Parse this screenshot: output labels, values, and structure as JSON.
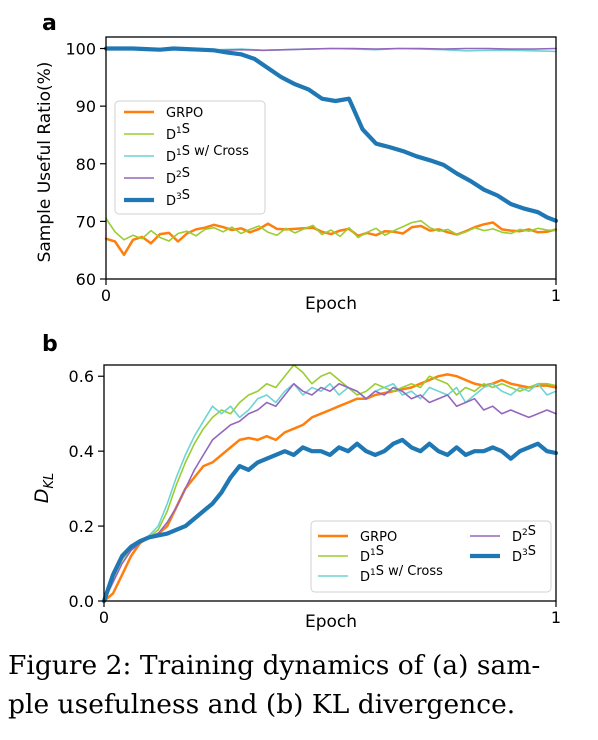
{
  "panel_a": {
    "letter": "a",
    "chart_data": {
      "type": "line",
      "xlabel": "Epoch",
      "ylabel": "Sample Useful Ratio(%)",
      "xlim": [
        0,
        1
      ],
      "ylim": [
        60,
        102
      ],
      "xticks": [
        "0",
        "1"
      ],
      "yticks": [
        60,
        70,
        80,
        90,
        100
      ],
      "legend_position": "center-left",
      "series": [
        {
          "name": "GRPO",
          "color": "#ff7f0e",
          "width": 2.5,
          "x": [
            0,
            0.02,
            0.04,
            0.06,
            0.08,
            0.1,
            0.12,
            0.14,
            0.16,
            0.18,
            0.2,
            0.22,
            0.24,
            0.26,
            0.28,
            0.3,
            0.32,
            0.34,
            0.36,
            0.38,
            0.4,
            0.42,
            0.44,
            0.46,
            0.48,
            0.5,
            0.52,
            0.54,
            0.56,
            0.58,
            0.6,
            0.62,
            0.64,
            0.66,
            0.68,
            0.7,
            0.72,
            0.74,
            0.76,
            0.78,
            0.8,
            0.82,
            0.84,
            0.86,
            0.88,
            0.9,
            0.92,
            0.94,
            0.96,
            0.98,
            1
          ],
          "y": [
            67,
            66.5,
            64.2,
            66.8,
            67.3,
            66.2,
            67.8,
            68.0,
            66.5,
            67.9,
            68.6,
            68.9,
            69.4,
            69.0,
            68.5,
            68.8,
            68.1,
            68.7,
            69.6,
            68.7,
            68.6,
            68.7,
            68.8,
            68.9,
            68.2,
            67.8,
            68.4,
            68.7,
            67.5,
            68.0,
            67.6,
            68.3,
            68.2,
            67.9,
            69.0,
            69.2,
            68.4,
            68.6,
            68.1,
            67.7,
            68.3,
            69.0,
            69.5,
            69.8,
            68.6,
            68.4,
            68.3,
            68.6,
            68.1,
            68.2,
            68.6
          ]
        },
        {
          "name": "D¹S",
          "color": "#9acd32",
          "width": 1.6,
          "x": [
            0,
            0.02,
            0.04,
            0.06,
            0.08,
            0.1,
            0.12,
            0.14,
            0.16,
            0.18,
            0.2,
            0.22,
            0.24,
            0.26,
            0.28,
            0.3,
            0.32,
            0.34,
            0.36,
            0.38,
            0.4,
            0.42,
            0.44,
            0.46,
            0.48,
            0.5,
            0.52,
            0.54,
            0.56,
            0.58,
            0.6,
            0.62,
            0.64,
            0.66,
            0.68,
            0.7,
            0.72,
            0.74,
            0.76,
            0.78,
            0.8,
            0.82,
            0.84,
            0.86,
            0.88,
            0.9,
            0.92,
            0.94,
            0.96,
            0.98,
            1
          ],
          "y": [
            70.5,
            68.2,
            66.8,
            67.6,
            67.0,
            68.4,
            67.2,
            66.6,
            67.9,
            68.3,
            67.5,
            68.6,
            68.9,
            68.2,
            69.0,
            67.9,
            68.6,
            69.2,
            68.1,
            67.6,
            68.8,
            68.0,
            68.7,
            69.3,
            67.7,
            68.5,
            67.4,
            68.9,
            67.2,
            68.1,
            68.8,
            67.6,
            68.4,
            69.1,
            69.8,
            70.1,
            68.9,
            68.3,
            68.6,
            67.7,
            68.2,
            68.9,
            68.4,
            68.7,
            68.1,
            67.9,
            68.6,
            68.3,
            68.8,
            68.5,
            68.4
          ]
        },
        {
          "name": "D¹S w/ Cross",
          "color": "#6fd4d4",
          "width": 1.6,
          "x": [
            0,
            0.05,
            0.1,
            0.15,
            0.2,
            0.25,
            0.3,
            0.35,
            0.4,
            0.45,
            0.5,
            0.55,
            0.6,
            0.65,
            0.7,
            0.75,
            0.8,
            0.85,
            0.9,
            0.95,
            1
          ],
          "y": [
            99.8,
            99.9,
            100,
            99.9,
            99.9,
            99.8,
            99.9,
            99.7,
            99.8,
            99.9,
            100,
            99.9,
            99.8,
            100,
            99.9,
            99.8,
            99.6,
            99.7,
            99.7,
            99.6,
            99.5
          ]
        },
        {
          "name": "D²S",
          "color": "#9467bd",
          "width": 1.6,
          "x": [
            0,
            0.05,
            0.1,
            0.15,
            0.2,
            0.25,
            0.3,
            0.35,
            0.4,
            0.45,
            0.5,
            0.55,
            0.6,
            0.65,
            0.7,
            0.75,
            0.8,
            0.85,
            0.9,
            0.95,
            1
          ],
          "y": [
            100,
            99.9,
            100,
            99.9,
            99.8,
            99.7,
            99.8,
            99.7,
            99.8,
            99.9,
            100,
            100,
            99.9,
            100,
            100,
            99.9,
            100,
            100,
            99.9,
            99.9,
            100
          ]
        },
        {
          "name": "D³S",
          "color": "#1f77b4",
          "width": 4.2,
          "x": [
            0,
            0.03,
            0.06,
            0.09,
            0.12,
            0.15,
            0.18,
            0.21,
            0.24,
            0.27,
            0.3,
            0.33,
            0.36,
            0.39,
            0.42,
            0.45,
            0.48,
            0.51,
            0.54,
            0.57,
            0.6,
            0.63,
            0.66,
            0.69,
            0.72,
            0.75,
            0.78,
            0.81,
            0.84,
            0.87,
            0.9,
            0.93,
            0.96,
            0.98,
            1
          ],
          "y": [
            100,
            100,
            100,
            99.9,
            99.8,
            100,
            99.9,
            99.8,
            99.7,
            99.3,
            99,
            98.2,
            96.6,
            95,
            93.8,
            92.9,
            91.3,
            90.9,
            91.3,
            86,
            83.5,
            82.9,
            82.2,
            81.3,
            80.6,
            79.8,
            78.3,
            77,
            75.5,
            74.5,
            73,
            72.2,
            71.6,
            70.7,
            70.1
          ]
        }
      ]
    }
  },
  "panel_b": {
    "letter": "b",
    "chart_data": {
      "type": "line",
      "xlabel": "Epoch",
      "ylabel": "D_KL",
      "ylabel_main": "D",
      "ylabel_sub": "KL",
      "xlim": [
        0,
        1
      ],
      "ylim": [
        0,
        0.63
      ],
      "xticks": [
        "0",
        "1"
      ],
      "yticks": [
        "0.0",
        "0.2",
        "0.4",
        "0.6"
      ],
      "legend_position": "lower-right",
      "series": [
        {
          "name": "GRPO",
          "color": "#ff7f0e",
          "width": 2.5,
          "x": [
            0,
            0.02,
            0.04,
            0.06,
            0.08,
            0.1,
            0.12,
            0.14,
            0.16,
            0.18,
            0.2,
            0.22,
            0.24,
            0.26,
            0.28,
            0.3,
            0.32,
            0.34,
            0.36,
            0.38,
            0.4,
            0.42,
            0.44,
            0.46,
            0.48,
            0.5,
            0.52,
            0.54,
            0.56,
            0.58,
            0.6,
            0.62,
            0.64,
            0.66,
            0.68,
            0.7,
            0.72,
            0.74,
            0.76,
            0.78,
            0.8,
            0.82,
            0.84,
            0.86,
            0.88,
            0.9,
            0.92,
            0.94,
            0.96,
            0.98,
            1
          ],
          "y": [
            0,
            0.02,
            0.07,
            0.12,
            0.155,
            0.17,
            0.18,
            0.2,
            0.25,
            0.3,
            0.33,
            0.36,
            0.37,
            0.39,
            0.41,
            0.43,
            0.435,
            0.43,
            0.44,
            0.43,
            0.45,
            0.46,
            0.47,
            0.49,
            0.5,
            0.51,
            0.52,
            0.53,
            0.54,
            0.54,
            0.55,
            0.555,
            0.56,
            0.565,
            0.57,
            0.58,
            0.59,
            0.6,
            0.605,
            0.6,
            0.59,
            0.58,
            0.575,
            0.58,
            0.59,
            0.58,
            0.575,
            0.57,
            0.575,
            0.575,
            0.57
          ]
        },
        {
          "name": "D¹S",
          "color": "#9acd32",
          "width": 1.6,
          "x": [
            0,
            0.02,
            0.04,
            0.06,
            0.08,
            0.1,
            0.12,
            0.14,
            0.16,
            0.18,
            0.2,
            0.22,
            0.24,
            0.26,
            0.28,
            0.3,
            0.32,
            0.34,
            0.36,
            0.38,
            0.4,
            0.42,
            0.44,
            0.46,
            0.48,
            0.5,
            0.52,
            0.54,
            0.56,
            0.58,
            0.6,
            0.62,
            0.64,
            0.66,
            0.68,
            0.7,
            0.72,
            0.74,
            0.76,
            0.78,
            0.8,
            0.82,
            0.84,
            0.86,
            0.88,
            0.9,
            0.92,
            0.94,
            0.96,
            0.98,
            1
          ],
          "y": [
            0,
            0.06,
            0.11,
            0.14,
            0.16,
            0.17,
            0.19,
            0.24,
            0.31,
            0.37,
            0.42,
            0.46,
            0.49,
            0.51,
            0.5,
            0.53,
            0.55,
            0.56,
            0.58,
            0.57,
            0.6,
            0.63,
            0.61,
            0.58,
            0.6,
            0.61,
            0.59,
            0.57,
            0.55,
            0.56,
            0.58,
            0.57,
            0.56,
            0.57,
            0.58,
            0.57,
            0.6,
            0.59,
            0.58,
            0.55,
            0.57,
            0.56,
            0.58,
            0.57,
            0.58,
            0.57,
            0.56,
            0.57,
            0.58,
            0.58,
            0.575
          ]
        },
        {
          "name": "D¹S w/ Cross",
          "color": "#6fd4d4",
          "width": 1.6,
          "x": [
            0,
            0.02,
            0.04,
            0.06,
            0.08,
            0.1,
            0.12,
            0.14,
            0.16,
            0.18,
            0.2,
            0.22,
            0.24,
            0.26,
            0.28,
            0.3,
            0.32,
            0.34,
            0.36,
            0.38,
            0.4,
            0.42,
            0.44,
            0.46,
            0.48,
            0.5,
            0.52,
            0.54,
            0.56,
            0.58,
            0.6,
            0.62,
            0.64,
            0.66,
            0.68,
            0.7,
            0.72,
            0.74,
            0.76,
            0.78,
            0.8,
            0.82,
            0.84,
            0.86,
            0.88,
            0.9,
            0.92,
            0.94,
            0.96,
            0.98,
            1
          ],
          "y": [
            0,
            0.07,
            0.12,
            0.145,
            0.16,
            0.175,
            0.2,
            0.26,
            0.33,
            0.39,
            0.44,
            0.48,
            0.52,
            0.5,
            0.52,
            0.49,
            0.51,
            0.54,
            0.55,
            0.53,
            0.56,
            0.58,
            0.55,
            0.57,
            0.56,
            0.58,
            0.55,
            0.57,
            0.56,
            0.54,
            0.56,
            0.57,
            0.58,
            0.55,
            0.56,
            0.54,
            0.57,
            0.56,
            0.55,
            0.57,
            0.53,
            0.55,
            0.57,
            0.58,
            0.56,
            0.55,
            0.57,
            0.56,
            0.58,
            0.55,
            0.56
          ]
        },
        {
          "name": "D²S",
          "color": "#9467bd",
          "width": 1.6,
          "x": [
            0,
            0.02,
            0.04,
            0.06,
            0.08,
            0.1,
            0.12,
            0.14,
            0.16,
            0.18,
            0.2,
            0.22,
            0.24,
            0.26,
            0.28,
            0.3,
            0.32,
            0.34,
            0.36,
            0.38,
            0.4,
            0.42,
            0.44,
            0.46,
            0.48,
            0.5,
            0.52,
            0.54,
            0.56,
            0.58,
            0.6,
            0.62,
            0.64,
            0.66,
            0.68,
            0.7,
            0.72,
            0.74,
            0.76,
            0.78,
            0.8,
            0.82,
            0.84,
            0.86,
            0.88,
            0.9,
            0.92,
            0.94,
            0.96,
            0.98,
            1
          ],
          "y": [
            0,
            0.05,
            0.1,
            0.135,
            0.155,
            0.17,
            0.18,
            0.21,
            0.25,
            0.3,
            0.35,
            0.39,
            0.43,
            0.45,
            0.47,
            0.48,
            0.5,
            0.51,
            0.53,
            0.52,
            0.55,
            0.58,
            0.56,
            0.55,
            0.57,
            0.56,
            0.58,
            0.57,
            0.56,
            0.54,
            0.56,
            0.55,
            0.57,
            0.56,
            0.54,
            0.55,
            0.53,
            0.54,
            0.55,
            0.52,
            0.53,
            0.54,
            0.51,
            0.52,
            0.5,
            0.51,
            0.5,
            0.49,
            0.5,
            0.51,
            0.5
          ]
        },
        {
          "name": "D³S",
          "color": "#1f77b4",
          "width": 4.2,
          "x": [
            0,
            0.02,
            0.04,
            0.06,
            0.08,
            0.1,
            0.12,
            0.14,
            0.16,
            0.18,
            0.2,
            0.22,
            0.24,
            0.26,
            0.28,
            0.3,
            0.32,
            0.34,
            0.36,
            0.38,
            0.4,
            0.42,
            0.44,
            0.46,
            0.48,
            0.5,
            0.52,
            0.54,
            0.56,
            0.58,
            0.6,
            0.62,
            0.64,
            0.66,
            0.68,
            0.7,
            0.72,
            0.74,
            0.76,
            0.78,
            0.8,
            0.82,
            0.84,
            0.86,
            0.88,
            0.9,
            0.92,
            0.94,
            0.96,
            0.98,
            1
          ],
          "y": [
            0,
            0.07,
            0.12,
            0.145,
            0.16,
            0.17,
            0.175,
            0.18,
            0.19,
            0.2,
            0.22,
            0.24,
            0.26,
            0.29,
            0.33,
            0.36,
            0.35,
            0.37,
            0.38,
            0.39,
            0.4,
            0.39,
            0.41,
            0.4,
            0.4,
            0.39,
            0.41,
            0.4,
            0.42,
            0.4,
            0.39,
            0.4,
            0.42,
            0.43,
            0.41,
            0.4,
            0.42,
            0.4,
            0.39,
            0.41,
            0.39,
            0.4,
            0.4,
            0.41,
            0.4,
            0.38,
            0.4,
            0.41,
            0.42,
            0.4,
            0.395
          ]
        }
      ]
    }
  },
  "caption": {
    "line1": "Figure 2: Training dynamics of (a) sam-",
    "line2": "ple usefulness and (b) KL divergence."
  }
}
